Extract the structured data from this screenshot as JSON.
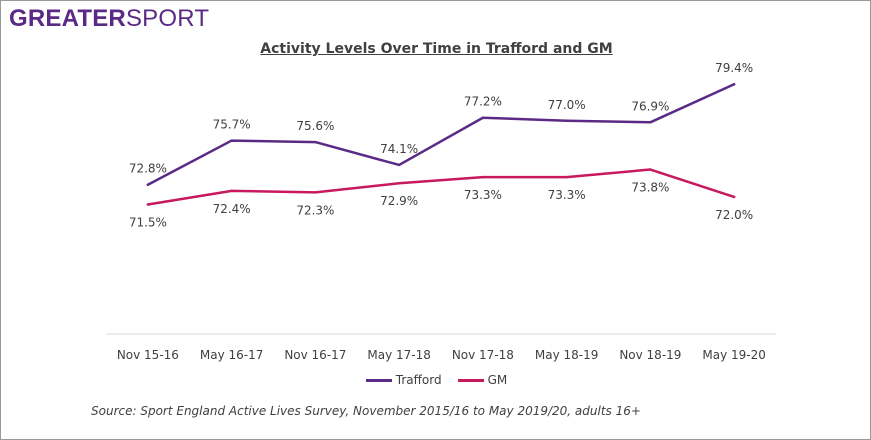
{
  "logo": {
    "bold_text": "GREATER",
    "light_text": "SPORT"
  },
  "source_note": "Source: Sport England Active Lives Survey, November 2015/16 to May 2019/20, adults 16+",
  "colors": {
    "trafford": "#5b2a86",
    "gm": "#c8195f",
    "axis": "#d9d9d9",
    "text": "#404040"
  },
  "chart_data": {
    "type": "line",
    "title": "Activity Levels Over Time in Trafford and GM",
    "xlabel": "",
    "ylabel": "",
    "categories": [
      "Nov 15-16",
      "May 16-17",
      "Nov 16-17",
      "May 17-18",
      "Nov 17-18",
      "May 18-19",
      "Nov 18-19",
      "May 19-20"
    ],
    "ylim": [
      63,
      80.4
    ],
    "grid": false,
    "legend_position": "bottom",
    "series": [
      {
        "name": "Trafford",
        "values": [
          72.8,
          75.7,
          75.6,
          74.1,
          77.2,
          77.0,
          76.9,
          79.4
        ],
        "labels": [
          "72.8%",
          "75.7%",
          "75.6%",
          "74.1%",
          "77.2%",
          "77.0%",
          "76.9%",
          "79.4%"
        ],
        "label_position": "above"
      },
      {
        "name": "GM",
        "values": [
          71.5,
          72.4,
          72.3,
          72.9,
          73.3,
          73.3,
          73.8,
          72.0
        ],
        "labels": [
          "71.5%",
          "72.4%",
          "72.3%",
          "72.9%",
          "73.3%",
          "73.3%",
          "73.8%",
          "72.0%"
        ],
        "label_position": "below"
      }
    ]
  }
}
